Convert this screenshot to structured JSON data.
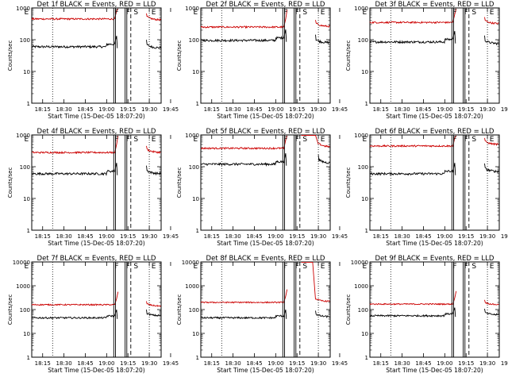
{
  "panels_common": {
    "xlabel": "Start Time (15-Dec-05 18:07:20)",
    "ylabel": "Counts/sec",
    "x_ticks": [
      "18:15",
      "18:30",
      "18:45",
      "19:00",
      "19:15",
      "19:30",
      "19:45"
    ],
    "y_ticks": [
      "1",
      "10",
      "100",
      "1000"
    ],
    "y_ticks_wide": [
      "1",
      "10",
      "100",
      "1000",
      "10000"
    ]
  },
  "chart_data": [
    {
      "type": "line",
      "title": "Det 1f BLACK = Events, RED = LLD",
      "ylim": [
        1,
        1000
      ],
      "x_range_min": [
        7.33,
        98.33
      ],
      "markers": {
        "E1": 8,
        "F": 65,
        "S": 77,
        "E2": 90
      },
      "series": [
        {
          "name": "Events",
          "color": "#000000",
          "pre": 60,
          "post": 55
        },
        {
          "name": "LLD",
          "color": "#cc0000",
          "pre": 450,
          "post": 420
        }
      ],
      "gap": [
        66,
        88
      ]
    },
    {
      "type": "line",
      "title": "Det 2f BLACK = Events, RED = LLD",
      "ylim": [
        1,
        1000
      ],
      "x_range_min": [
        7.33,
        98.33
      ],
      "markers": {
        "E1": 8,
        "F": 65,
        "S": 77,
        "E2": 90
      },
      "series": [
        {
          "name": "Events",
          "color": "#000000",
          "pre": 95,
          "post": 80
        },
        {
          "name": "LLD",
          "color": "#cc0000",
          "pre": 250,
          "post": 260
        }
      ],
      "gap": [
        66,
        88
      ]
    },
    {
      "type": "line",
      "title": "Det 3f BLACK = Events, RED = LLD",
      "ylim": [
        1,
        1000
      ],
      "x_range_min": [
        7.33,
        98.33
      ],
      "markers": {
        "E1": 8,
        "F": 65,
        "S": 77,
        "E2": 90
      },
      "series": [
        {
          "name": "Events",
          "color": "#000000",
          "pre": 85,
          "post": 75
        },
        {
          "name": "LLD",
          "color": "#cc0000",
          "pre": 350,
          "post": 320
        }
      ],
      "gap": [
        66,
        88
      ]
    },
    {
      "type": "line",
      "title": "Det 4f BLACK = Events, RED = LLD",
      "ylim": [
        1,
        1000
      ],
      "x_range_min": [
        7.33,
        98.33
      ],
      "markers": {
        "E1": 8,
        "F": 65,
        "S": 77,
        "E2": 90
      },
      "series": [
        {
          "name": "Events",
          "color": "#000000",
          "pre": 60,
          "post": 60
        },
        {
          "name": "LLD",
          "color": "#cc0000",
          "pre": 280,
          "post": 280
        }
      ],
      "gap": [
        66,
        88
      ]
    },
    {
      "type": "line",
      "title": "Det 5f BLACK = Events, RED = LLD",
      "ylim": [
        1,
        1000
      ],
      "x_range_min": [
        7.33,
        98.33
      ],
      "markers": {
        "E1": 8,
        "F": 65,
        "S": 77,
        "E2": 90
      },
      "series": [
        {
          "name": "Events",
          "color": "#000000",
          "pre": 120,
          "post": 130
        },
        {
          "name": "LLD",
          "color": "#cc0000",
          "pre": 380,
          "post": 420
        }
      ],
      "gap": [
        66,
        76
      ],
      "saturated": [
        78,
        88
      ]
    },
    {
      "type": "line",
      "title": "Det 6f BLACK = Events, RED = LLD",
      "ylim": [
        1,
        1000
      ],
      "x_range_min": [
        7.33,
        98.33
      ],
      "markers": {
        "E1": 8,
        "F": 65,
        "S": 77,
        "E2": 90
      },
      "series": [
        {
          "name": "Events",
          "color": "#000000",
          "pre": 60,
          "post": 70
        },
        {
          "name": "LLD",
          "color": "#cc0000",
          "pre": 450,
          "post": 500
        }
      ],
      "gap": [
        66,
        88
      ]
    },
    {
      "type": "line",
      "title": "Det 7f BLACK = Events, RED = LLD",
      "ylim": [
        1,
        10000
      ],
      "x_range_min": [
        7.33,
        98.33
      ],
      "markers": {
        "E1": 8,
        "F": 65,
        "S": 77,
        "E2": 90
      },
      "series": [
        {
          "name": "Events",
          "color": "#000000",
          "pre": 45,
          "post": 55
        },
        {
          "name": "LLD",
          "color": "#cc0000",
          "pre": 160,
          "post": 140
        }
      ],
      "gap": [
        66,
        88
      ]
    },
    {
      "type": "line",
      "title": "Det 8f BLACK = Events, RED = LLD",
      "ylim": [
        1,
        10000
      ],
      "x_range_min": [
        7.33,
        98.33
      ],
      "markers": {
        "E1": 8,
        "F": 65,
        "S": 77,
        "E2": 90
      },
      "series": [
        {
          "name": "Events",
          "color": "#000000",
          "pre": 45,
          "post": 50
        },
        {
          "name": "LLD",
          "color": "#cc0000",
          "pre": 200,
          "post": 220
        }
      ],
      "gap": [
        66,
        76
      ],
      "saturated": [
        78,
        86
      ]
    },
    {
      "type": "line",
      "title": "Det 9f BLACK = Events, RED = LLD",
      "ylim": [
        1,
        10000
      ],
      "x_range_min": [
        7.33,
        98.33
      ],
      "markers": {
        "E1": 8,
        "F": 65,
        "S": 77,
        "E2": 90
      },
      "series": [
        {
          "name": "Events",
          "color": "#000000",
          "pre": 55,
          "post": 60
        },
        {
          "name": "LLD",
          "color": "#cc0000",
          "pre": 170,
          "post": 160
        }
      ],
      "gap": [
        66,
        88
      ]
    }
  ]
}
